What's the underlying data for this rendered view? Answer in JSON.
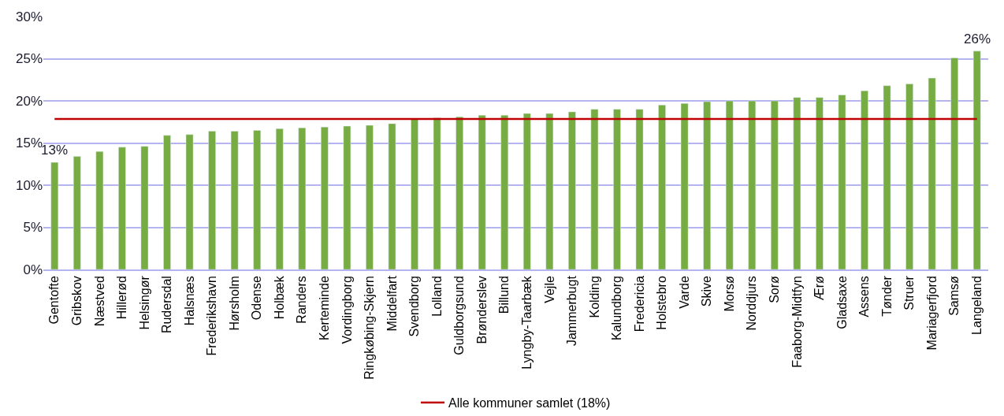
{
  "chart_data": {
    "type": "bar",
    "categories": [
      "Gentofte",
      "Gribskov",
      "Næstved",
      "Hillerød",
      "Helsingør",
      "Rudersdal",
      "Halsnæs",
      "Frederikshavn",
      "Hørsholm",
      "Odense",
      "Holbæk",
      "Randers",
      "Kerteminde",
      "Vordingborg",
      "Ringkøbing-Skjern",
      "Middelfart",
      "Svendborg",
      "Lolland",
      "Guldborgsund",
      "Brønderslev",
      "Billund",
      "Lyngby-Taarbæk",
      "Vejle",
      "Jammerbugt",
      "Kolding",
      "Kalundborg",
      "Fredericia",
      "Holstebro",
      "Varde",
      "Skive",
      "Morsø",
      "Norddjurs",
      "Sorø",
      "Faaborg-Midtfyn",
      "Ærø",
      "Gladsaxe",
      "Assens",
      "Tønder",
      "Struer",
      "Mariagerfjord",
      "Samsø",
      "Langeland"
    ],
    "values": [
      12.7,
      13.4,
      14.0,
      14.5,
      14.6,
      15.9,
      16.0,
      16.4,
      16.4,
      16.5,
      16.7,
      16.8,
      16.9,
      17.0,
      17.1,
      17.3,
      17.8,
      18.0,
      18.1,
      18.3,
      18.3,
      18.5,
      18.5,
      18.7,
      19.0,
      19.0,
      19.0,
      19.5,
      19.7,
      19.9,
      20.0,
      20.0,
      20.0,
      20.4,
      20.4,
      20.7,
      21.2,
      21.8,
      22.0,
      22.7,
      25.1,
      25.9
    ],
    "value_labels": [
      "13%",
      null,
      null,
      null,
      null,
      null,
      null,
      null,
      null,
      null,
      null,
      null,
      null,
      null,
      null,
      null,
      null,
      null,
      null,
      null,
      null,
      null,
      null,
      null,
      null,
      null,
      null,
      null,
      null,
      null,
      null,
      null,
      null,
      null,
      null,
      null,
      null,
      null,
      null,
      null,
      null,
      "26%"
    ],
    "color": "#76ac42",
    "ylim": [
      0,
      30
    ],
    "yticks": [
      {
        "value": 0,
        "label": "0%"
      },
      {
        "value": 5,
        "label": "5%"
      },
      {
        "value": 10,
        "label": "10%"
      },
      {
        "value": 15,
        "label": "15%"
      },
      {
        "value": 20,
        "label": "20%"
      },
      {
        "value": 25,
        "label": "25%"
      },
      {
        "value": 30,
        "label": "30%"
      }
    ],
    "grid": "y",
    "legend": "bottom",
    "ref_lines": [
      {
        "axis": "y",
        "value": 17.85,
        "label": "Alle kommuner samlet (18%)",
        "color": "#c00000"
      }
    ]
  }
}
